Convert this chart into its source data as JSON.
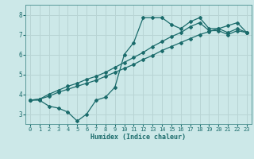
{
  "bg_color": "#cce8e8",
  "grid_color": "#b8d4d4",
  "line_color": "#1a6b6b",
  "xlabel": "Humidex (Indice chaleur)",
  "xlim": [
    -0.5,
    23.5
  ],
  "ylim": [
    2.5,
    8.5
  ],
  "xticks": [
    0,
    1,
    2,
    3,
    4,
    5,
    6,
    7,
    8,
    9,
    10,
    11,
    12,
    13,
    14,
    15,
    16,
    17,
    18,
    19,
    20,
    21,
    22,
    23
  ],
  "yticks": [
    3,
    4,
    5,
    6,
    7,
    8
  ],
  "curve1_x": [
    0,
    1,
    2,
    3,
    4,
    5,
    6,
    7,
    8,
    9,
    10,
    11,
    12,
    13,
    14,
    15,
    16,
    17,
    18,
    19,
    20,
    21,
    22,
    23
  ],
  "curve1_y": [
    3.7,
    3.7,
    3.4,
    3.3,
    3.1,
    2.65,
    3.0,
    3.7,
    3.85,
    4.35,
    6.0,
    6.6,
    7.85,
    7.85,
    7.85,
    7.5,
    7.3,
    7.65,
    7.85,
    7.3,
    7.3,
    7.1,
    7.3,
    7.1
  ],
  "curve2_x": [
    0,
    1,
    2,
    3,
    4,
    5,
    6,
    7,
    8,
    9,
    10,
    11,
    12,
    13,
    14,
    15,
    16,
    17,
    18,
    19,
    20,
    21,
    22,
    23
  ],
  "curve2_y": [
    3.7,
    3.75,
    3.9,
    4.1,
    4.25,
    4.4,
    4.55,
    4.7,
    4.9,
    5.1,
    5.3,
    5.5,
    5.75,
    5.95,
    6.2,
    6.4,
    6.6,
    6.8,
    7.0,
    7.15,
    7.3,
    7.45,
    7.6,
    7.1
  ],
  "curve3_x": [
    0,
    1,
    2,
    3,
    4,
    5,
    6,
    7,
    8,
    9,
    10,
    11,
    12,
    13,
    14,
    15,
    16,
    17,
    18,
    19,
    20,
    21,
    22,
    23
  ],
  "curve3_y": [
    3.7,
    3.75,
    4.0,
    4.2,
    4.4,
    4.55,
    4.75,
    4.9,
    5.1,
    5.35,
    5.6,
    5.85,
    6.1,
    6.4,
    6.65,
    6.9,
    7.1,
    7.4,
    7.6,
    7.2,
    7.2,
    7.0,
    7.2,
    7.1
  ]
}
